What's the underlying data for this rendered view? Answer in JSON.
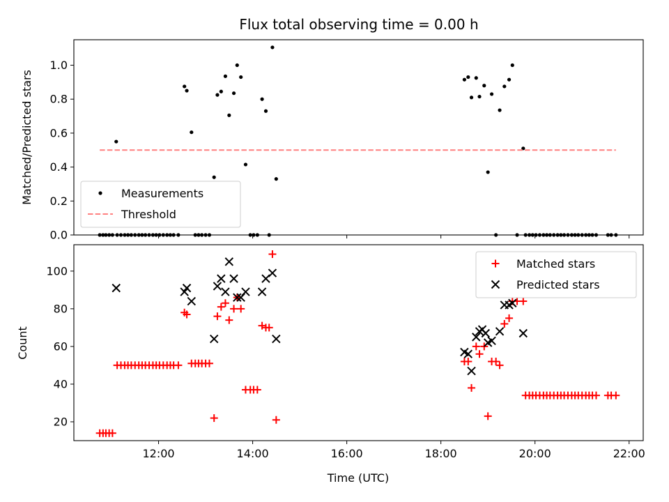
{
  "title": "Flux total observing time = 0.00 h",
  "chart_data": [
    {
      "type": "scatter",
      "panel": "top",
      "ylabel": "Matched/Predicted stars",
      "ylim": [
        0,
        1.15
      ],
      "yticks": [
        0.0,
        0.2,
        0.4,
        0.6,
        0.8,
        1.0
      ],
      "ytick_labels": [
        "0.0",
        "0.2",
        "0.4",
        "0.6",
        "0.8",
        "1.0"
      ],
      "legend": {
        "placement": "lower-left",
        "entries": [
          "Measurements",
          "Threshold"
        ]
      },
      "series": [
        {
          "name": "Measurements",
          "color": "#000000",
          "marker": "dot",
          "points": [
            [
              10.75,
              0
            ],
            [
              10.82,
              0
            ],
            [
              10.88,
              0
            ],
            [
              10.95,
              0
            ],
            [
              11.02,
              0
            ],
            [
              11.1,
              0.55
            ],
            [
              11.12,
              0
            ],
            [
              11.2,
              0
            ],
            [
              11.28,
              0
            ],
            [
              11.35,
              0
            ],
            [
              11.42,
              0
            ],
            [
              11.5,
              0
            ],
            [
              11.58,
              0
            ],
            [
              11.65,
              0
            ],
            [
              11.72,
              0
            ],
            [
              11.8,
              0
            ],
            [
              11.88,
              0
            ],
            [
              11.95,
              0
            ],
            [
              12.02,
              0
            ],
            [
              12.1,
              0
            ],
            [
              12.18,
              0
            ],
            [
              12.25,
              0
            ],
            [
              12.32,
              0
            ],
            [
              12.42,
              0
            ],
            [
              12.55,
              0.875
            ],
            [
              12.6,
              0.85
            ],
            [
              12.7,
              0.605
            ],
            [
              12.78,
              0
            ],
            [
              12.85,
              0
            ],
            [
              12.92,
              0
            ],
            [
              13.0,
              0
            ],
            [
              13.08,
              0
            ],
            [
              13.18,
              0.34
            ],
            [
              13.25,
              0.825
            ],
            [
              13.33,
              0.845
            ],
            [
              13.42,
              0.935
            ],
            [
              13.5,
              0.705
            ],
            [
              13.6,
              0.835
            ],
            [
              13.67,
              1.0
            ],
            [
              13.75,
              0.93
            ],
            [
              13.85,
              0.415
            ],
            [
              13.95,
              0
            ],
            [
              14.02,
              0
            ],
            [
              14.1,
              0
            ],
            [
              14.2,
              0.8
            ],
            [
              14.28,
              0.73
            ],
            [
              14.35,
              0
            ],
            [
              14.42,
              1.105
            ],
            [
              14.5,
              0.33
            ],
            [
              18.5,
              0.915
            ],
            [
              18.58,
              0.93
            ],
            [
              18.65,
              0.81
            ],
            [
              18.75,
              0.925
            ],
            [
              18.82,
              0.815
            ],
            [
              18.92,
              0.88
            ],
            [
              19.0,
              0.37
            ],
            [
              19.08,
              0.83
            ],
            [
              19.17,
              0
            ],
            [
              19.25,
              0.735
            ],
            [
              19.35,
              0.875
            ],
            [
              19.45,
              0.915
            ],
            [
              19.52,
              1.0
            ],
            [
              19.62,
              0
            ],
            [
              19.75,
              0.51
            ],
            [
              19.8,
              0
            ],
            [
              19.88,
              0
            ],
            [
              19.95,
              0
            ],
            [
              20.02,
              0
            ],
            [
              20.1,
              0
            ],
            [
              20.18,
              0
            ],
            [
              20.25,
              0
            ],
            [
              20.32,
              0
            ],
            [
              20.4,
              0
            ],
            [
              20.48,
              0
            ],
            [
              20.55,
              0
            ],
            [
              20.62,
              0
            ],
            [
              20.7,
              0
            ],
            [
              20.78,
              0
            ],
            [
              20.85,
              0
            ],
            [
              20.92,
              0
            ],
            [
              21.0,
              0
            ],
            [
              21.08,
              0
            ],
            [
              21.15,
              0
            ],
            [
              21.22,
              0
            ],
            [
              21.3,
              0
            ],
            [
              21.55,
              0
            ],
            [
              21.62,
              0
            ],
            [
              21.72,
              0
            ]
          ]
        },
        {
          "name": "Threshold",
          "color": "#ff7f7f",
          "style": "dashed",
          "points": [
            [
              10.75,
              0.5
            ],
            [
              21.72,
              0.5
            ]
          ]
        }
      ]
    },
    {
      "type": "scatter",
      "panel": "bottom",
      "xlabel": "Time (UTC)",
      "ylabel": "Count",
      "xlim": [
        10.2,
        22.3
      ],
      "ylim": [
        10,
        114
      ],
      "xticks": [
        12,
        14,
        16,
        18,
        20,
        22
      ],
      "xtick_labels": [
        "12:00",
        "14:00",
        "16:00",
        "18:00",
        "20:00",
        "22:00"
      ],
      "yticks": [
        20,
        40,
        60,
        80,
        100
      ],
      "ytick_labels": [
        "20",
        "40",
        "60",
        "80",
        "100"
      ],
      "legend": {
        "placement": "top-right",
        "entries": [
          "Matched stars",
          "Predicted stars"
        ]
      },
      "series": [
        {
          "name": "Matched stars",
          "color": "#ff0000",
          "marker": "plus",
          "points": [
            [
              10.75,
              14
            ],
            [
              10.82,
              14
            ],
            [
              10.88,
              14
            ],
            [
              10.95,
              14
            ],
            [
              11.02,
              14
            ],
            [
              11.12,
              50
            ],
            [
              11.2,
              50
            ],
            [
              11.28,
              50
            ],
            [
              11.35,
              50
            ],
            [
              11.42,
              50
            ],
            [
              11.5,
              50
            ],
            [
              11.58,
              50
            ],
            [
              11.65,
              50
            ],
            [
              11.72,
              50
            ],
            [
              11.8,
              50
            ],
            [
              11.88,
              50
            ],
            [
              11.95,
              50
            ],
            [
              12.02,
              50
            ],
            [
              12.1,
              50
            ],
            [
              12.18,
              50
            ],
            [
              12.25,
              50
            ],
            [
              12.32,
              50
            ],
            [
              12.42,
              50
            ],
            [
              12.55,
              78
            ],
            [
              12.6,
              77
            ],
            [
              12.7,
              51
            ],
            [
              12.78,
              51
            ],
            [
              12.85,
              51
            ],
            [
              12.92,
              51
            ],
            [
              13.0,
              51
            ],
            [
              13.08,
              51
            ],
            [
              13.18,
              22
            ],
            [
              13.25,
              76
            ],
            [
              13.33,
              81
            ],
            [
              13.42,
              83
            ],
            [
              13.5,
              74
            ],
            [
              13.6,
              80
            ],
            [
              13.67,
              86
            ],
            [
              13.75,
              80
            ],
            [
              13.85,
              37
            ],
            [
              13.95,
              37
            ],
            [
              14.02,
              37
            ],
            [
              14.1,
              37
            ],
            [
              14.2,
              71
            ],
            [
              14.28,
              70
            ],
            [
              14.35,
              70
            ],
            [
              14.42,
              109
            ],
            [
              14.5,
              21
            ],
            [
              18.5,
              52
            ],
            [
              18.58,
              52
            ],
            [
              18.65,
              38
            ],
            [
              18.75,
              60
            ],
            [
              18.82,
              56
            ],
            [
              18.92,
              60
            ],
            [
              19.0,
              23
            ],
            [
              19.08,
              52
            ],
            [
              19.17,
              52
            ],
            [
              19.25,
              50
            ],
            [
              19.35,
              72
            ],
            [
              19.45,
              75
            ],
            [
              19.52,
              84
            ],
            [
              19.62,
              84
            ],
            [
              19.75,
              84
            ],
            [
              19.8,
              34
            ],
            [
              19.88,
              34
            ],
            [
              19.95,
              34
            ],
            [
              20.02,
              34
            ],
            [
              20.1,
              34
            ],
            [
              20.18,
              34
            ],
            [
              20.25,
              34
            ],
            [
              20.32,
              34
            ],
            [
              20.4,
              34
            ],
            [
              20.48,
              34
            ],
            [
              20.55,
              34
            ],
            [
              20.62,
              34
            ],
            [
              20.7,
              34
            ],
            [
              20.78,
              34
            ],
            [
              20.85,
              34
            ],
            [
              20.92,
              34
            ],
            [
              21.0,
              34
            ],
            [
              21.08,
              34
            ],
            [
              21.15,
              34
            ],
            [
              21.22,
              34
            ],
            [
              21.3,
              34
            ],
            [
              21.55,
              34
            ],
            [
              21.62,
              34
            ],
            [
              21.72,
              34
            ]
          ]
        },
        {
          "name": "Predicted stars",
          "color": "#000000",
          "marker": "x",
          "points": [
            [
              11.1,
              91
            ],
            [
              12.55,
              89
            ],
            [
              12.6,
              91
            ],
            [
              12.7,
              84
            ],
            [
              13.18,
              64
            ],
            [
              13.25,
              92
            ],
            [
              13.33,
              96
            ],
            [
              13.42,
              89
            ],
            [
              13.5,
              105
            ],
            [
              13.6,
              96
            ],
            [
              13.67,
              86
            ],
            [
              13.75,
              86
            ],
            [
              13.85,
              89
            ],
            [
              14.2,
              89
            ],
            [
              14.28,
              96
            ],
            [
              14.42,
              99
            ],
            [
              14.5,
              64
            ],
            [
              18.5,
              57
            ],
            [
              18.58,
              56
            ],
            [
              18.65,
              47
            ],
            [
              18.75,
              65
            ],
            [
              18.82,
              68
            ],
            [
              18.88,
              69
            ],
            [
              18.95,
              67
            ],
            [
              19.0,
              62
            ],
            [
              19.08,
              63
            ],
            [
              19.25,
              68
            ],
            [
              19.35,
              82
            ],
            [
              19.45,
              82
            ],
            [
              19.52,
              83
            ],
            [
              19.75,
              67
            ]
          ]
        }
      ]
    }
  ]
}
